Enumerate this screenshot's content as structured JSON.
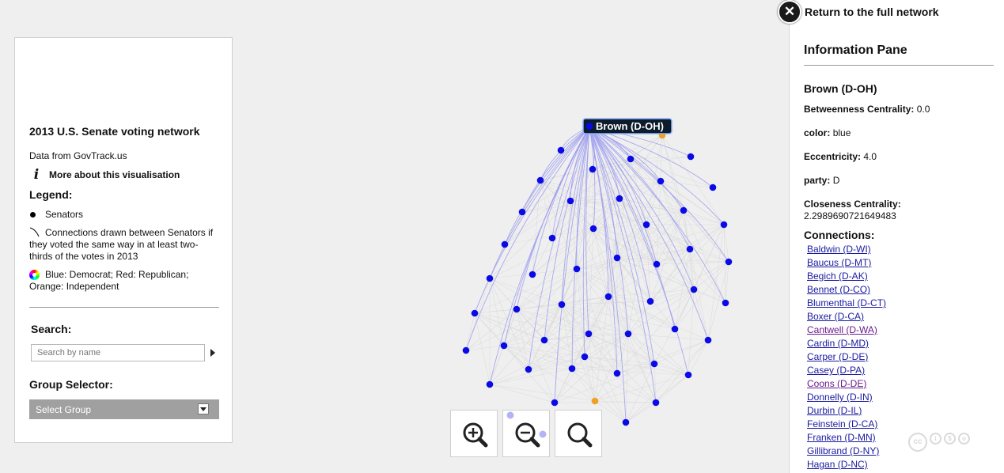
{
  "left_panel": {
    "title": "2013 U.S. Senate voting network",
    "data_source": "Data from GovTrack.us",
    "more_info": "More about this visualisation",
    "legend_heading": "Legend:",
    "legend": {
      "nodes": "Senators",
      "edges": "Connections drawn between Senators if they voted the same way in at least two-thirds of the votes in 2013",
      "colors": "Blue: Democrat; Red: Republican; Orange: Independent"
    },
    "search_heading": "Search:",
    "search_placeholder": "Search by name",
    "group_heading": "Group Selector:",
    "group_select_value": "Select Group"
  },
  "network": {
    "selected_node_label": "Brown (D-OH)",
    "colors": {
      "democrat": "#0a0ae6",
      "independent": "#f0a020",
      "edge_highlight": "#9c9cf0",
      "edge_faint": "#d8d8d8"
    }
  },
  "zoom_controls": {
    "zoom_in_icon": "zoom-in-icon",
    "zoom_out_icon": "zoom-out-icon",
    "zoom_reset_icon": "zoom-reset-icon"
  },
  "info_pane": {
    "return_label": "Return to the full network",
    "heading": "Information Pane",
    "node_name": "Brown (D-OH)",
    "attributes": [
      {
        "key": "Betweenness Centrality:",
        "value": "0.0"
      },
      {
        "key": "color:",
        "value": "blue"
      },
      {
        "key": "Eccentricity:",
        "value": "4.0"
      },
      {
        "key": "party:",
        "value": "D"
      },
      {
        "key": "Closeness Centrality:",
        "value": "2.2989690721649483"
      }
    ],
    "connections_heading": "Connections:",
    "connections": [
      "Baldwin (D-WI)",
      "Baucus (D-MT)",
      "Begich (D-AK)",
      "Bennet (D-CO)",
      "Blumenthal (D-CT)",
      "Boxer (D-CA)",
      "Cantwell (D-WA)",
      "Cardin (D-MD)",
      "Carper (D-DE)",
      "Casey (D-PA)",
      "Coons (D-DE)",
      "Donnelly (D-IN)",
      "Durbin (D-IL)",
      "Feinstein (D-CA)",
      "Franken (D-MN)",
      "Gillibrand (D-NY)",
      "Hagan (D-NC)"
    ]
  }
}
